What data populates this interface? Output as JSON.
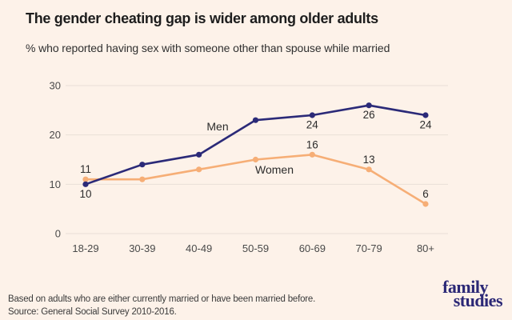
{
  "page": {
    "background": "#fdf2e9"
  },
  "header": {
    "title": "The gender cheating gap is wider among older adults",
    "subtitle": "% who reported having sex with someone other than spouse while married"
  },
  "chart_data": {
    "type": "line",
    "title": "The gender cheating gap is wider among older adults",
    "subtitle": "% who reported having sex with someone other than spouse while married",
    "categories": [
      "18-29",
      "30-39",
      "40-49",
      "50-59",
      "60-69",
      "70-79",
      "80+"
    ],
    "series": [
      {
        "name": "Men",
        "color": "#2b2a78",
        "values": [
          10,
          14,
          16,
          23,
          24,
          26,
          24
        ],
        "labeled_points": [
          {
            "index": 0,
            "position": "below"
          },
          {
            "index": 4,
            "position": "below"
          },
          {
            "index": 5,
            "position": "below"
          },
          {
            "index": 6,
            "position": "below"
          }
        ]
      },
      {
        "name": "Women",
        "color": "#f6ae76",
        "values": [
          11,
          11,
          13,
          15,
          16,
          13,
          6
        ],
        "labeled_points": [
          {
            "index": 0,
            "position": "above"
          },
          {
            "index": 4,
            "position": "above"
          },
          {
            "index": 5,
            "position": "above"
          },
          {
            "index": 6,
            "position": "above"
          }
        ]
      }
    ],
    "yticks": [
      0,
      10,
      20,
      30
    ],
    "ylim": [
      0,
      32
    ],
    "xlabel": "",
    "ylabel": "",
    "grid": "horizontal gridlines only",
    "legend": "inline series labels",
    "grid_color": "#e9dfd8",
    "tick_color": "#4a4a4a",
    "label_color": "#2c2c2c"
  },
  "footer": {
    "note": "Based on adults who are either currently married or have been married before.",
    "source": "Source: General Social Survey 2010-2016."
  },
  "logo": {
    "line1": "family",
    "line2": "studies",
    "color": "#2b2876"
  }
}
